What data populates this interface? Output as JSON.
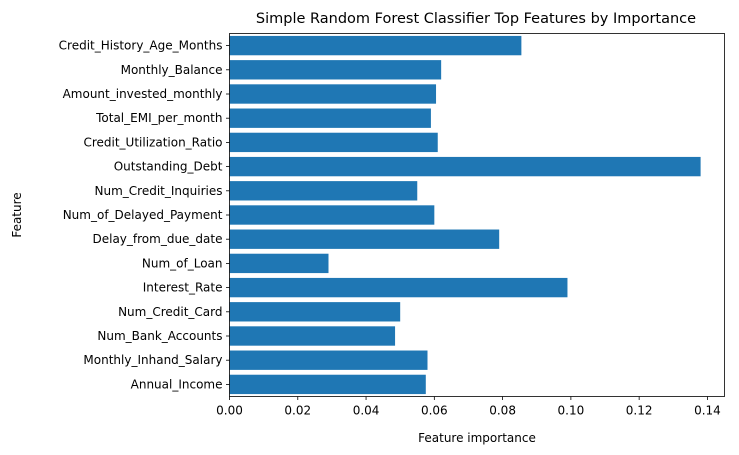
{
  "chart_data": {
    "type": "bar",
    "orientation": "horizontal",
    "title": "Simple Random Forest Classifier Top Features by Importance",
    "xlabel": "Feature importance",
    "ylabel": "Feature",
    "xlim": [
      0,
      0.145
    ],
    "xticks": [
      0.0,
      0.02,
      0.04,
      0.06,
      0.08,
      0.1,
      0.12,
      0.14
    ],
    "xtick_labels": [
      "0.00",
      "0.02",
      "0.04",
      "0.06",
      "0.08",
      "0.10",
      "0.12",
      "0.14"
    ],
    "grid": false,
    "bar_color": "#1f77b4",
    "categories": [
      "Annual_Income",
      "Monthly_Inhand_Salary",
      "Num_Bank_Accounts",
      "Num_Credit_Card",
      "Interest_Rate",
      "Num_of_Loan",
      "Delay_from_due_date",
      "Num_of_Delayed_Payment",
      "Num_Credit_Inquiries",
      "Outstanding_Debt",
      "Credit_Utilization_Ratio",
      "Total_EMI_per_month",
      "Amount_invested_monthly",
      "Monthly_Balance",
      "Credit_History_Age_Months"
    ],
    "values": [
      0.0575,
      0.058,
      0.0485,
      0.05,
      0.099,
      0.029,
      0.079,
      0.06,
      0.055,
      0.138,
      0.061,
      0.059,
      0.0605,
      0.062,
      0.0855
    ]
  }
}
